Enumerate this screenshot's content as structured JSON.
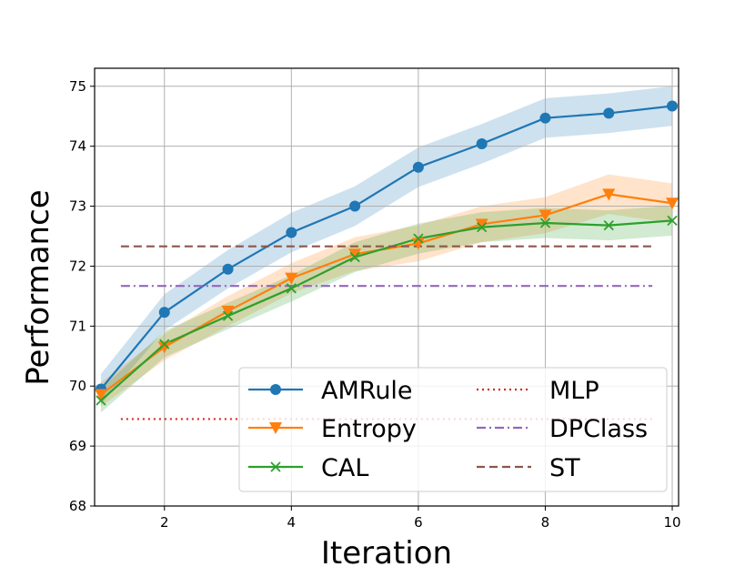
{
  "chart_data": {
    "type": "line",
    "title": "",
    "xlabel": "Iteration",
    "ylabel": "Performance",
    "xlim": [
      0.9,
      10.1
    ],
    "ylim": [
      68,
      75.3
    ],
    "xticks": [
      2,
      4,
      6,
      8,
      10
    ],
    "xtick_labels": [
      "2",
      "4",
      "6",
      "8",
      "10"
    ],
    "yticks": [
      68,
      69,
      70,
      71,
      72,
      73,
      74,
      75
    ],
    "ytick_labels": [
      "68",
      "69",
      "70",
      "71",
      "72",
      "73",
      "74",
      "75"
    ],
    "grid": true,
    "legend_position": "lower-right",
    "x": [
      1,
      2,
      3,
      4,
      5,
      6,
      7,
      8,
      9,
      10
    ],
    "series": [
      {
        "name": "AMRule",
        "color": "#1f77b4",
        "marker": "circle",
        "values": [
          69.95,
          71.23,
          71.95,
          72.56,
          73.0,
          73.65,
          74.04,
          74.47,
          74.55,
          74.67
        ],
        "band": [
          0.25,
          0.3,
          0.32,
          0.33,
          0.33,
          0.33,
          0.33,
          0.33,
          0.33,
          0.33
        ]
      },
      {
        "name": "Entropy",
        "color": "#ff7f0e",
        "marker": "triangle-down",
        "values": [
          69.86,
          70.65,
          71.25,
          71.8,
          72.2,
          72.38,
          72.7,
          72.85,
          73.2,
          73.05
        ],
        "band": [
          0.2,
          0.22,
          0.25,
          0.25,
          0.28,
          0.3,
          0.3,
          0.3,
          0.33,
          0.33
        ]
      },
      {
        "name": "CAL",
        "color": "#2ca02c",
        "marker": "x",
        "values": [
          69.76,
          70.7,
          71.17,
          71.63,
          72.15,
          72.46,
          72.65,
          72.72,
          72.68,
          72.76
        ],
        "band": [
          0.2,
          0.22,
          0.22,
          0.22,
          0.25,
          0.25,
          0.25,
          0.25,
          0.25,
          0.25
        ]
      },
      {
        "name": "MLP",
        "color": "#d62728",
        "style": "dotted",
        "constant": 69.45
      },
      {
        "name": "DPClass",
        "color": "#9467bd",
        "style": "dashdot",
        "constant": 71.67
      },
      {
        "name": "ST",
        "color": "#8c564b",
        "style": "dashed",
        "constant": 72.33
      }
    ]
  }
}
